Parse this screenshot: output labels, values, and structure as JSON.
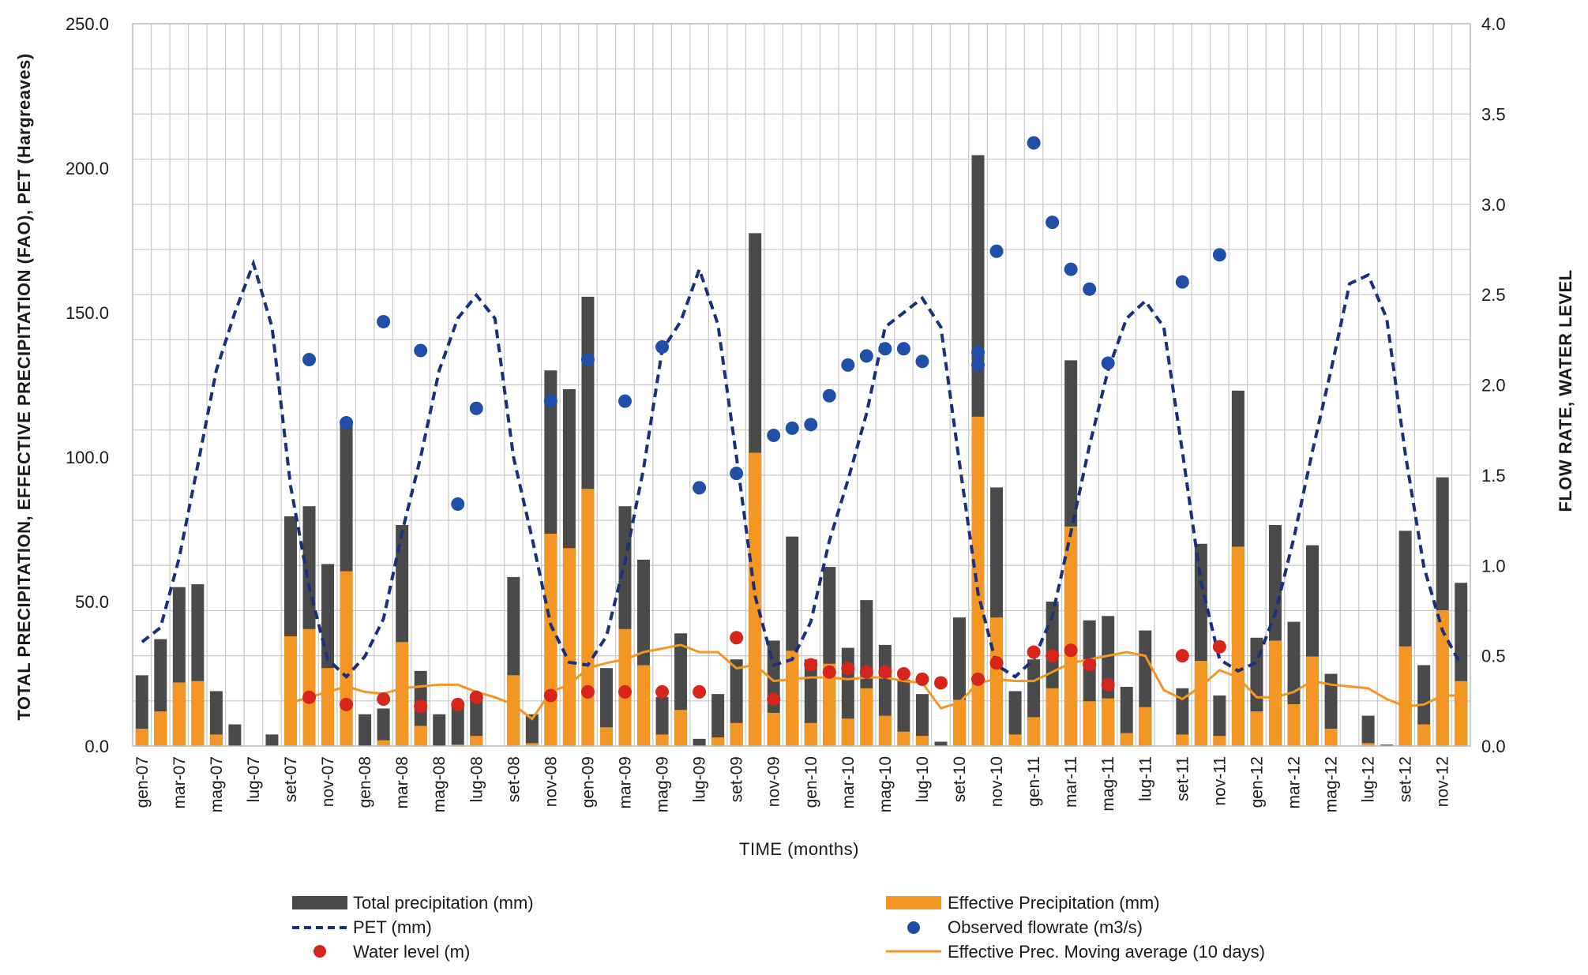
{
  "chart_data": {
    "type": "bar",
    "title": "",
    "xlabel": "TIME (months)",
    "ylabel": "TOTAL PRECIPITATION, EFFECTIVE PRECIPITATION (FAO), PET (Hargreaves)",
    "y2label": "FLOW RATE, WATER LEVEL",
    "ylim": [
      0,
      250
    ],
    "y2lim": [
      0,
      4
    ],
    "yticks": [
      "0.0",
      "50.0",
      "100.0",
      "150.0",
      "200.0",
      "250.0"
    ],
    "y2ticks": [
      "0.0",
      "0.5",
      "1.0",
      "1.5",
      "2.0",
      "2.5",
      "3.0",
      "3.5",
      "4.0"
    ],
    "grid": true,
    "legend_position": "bottom",
    "categories": [
      "gen-07",
      "feb-07",
      "mar-07",
      "apr-07",
      "mag-07",
      "giu-07",
      "lug-07",
      "ago-07",
      "set-07",
      "ott-07",
      "nov-07",
      "dic-07",
      "gen-08",
      "feb-08",
      "mar-08",
      "apr-08",
      "mag-08",
      "giu-08",
      "lug-08",
      "ago-08",
      "set-08",
      "ott-08",
      "nov-08",
      "dic-08",
      "gen-09",
      "feb-09",
      "mar-09",
      "apr-09",
      "mag-09",
      "giu-09",
      "lug-09",
      "ago-09",
      "set-09",
      "ott-09",
      "nov-09",
      "dic-09",
      "gen-10",
      "feb-10",
      "mar-10",
      "apr-10",
      "mag-10",
      "giu-10",
      "lug-10",
      "ago-10",
      "set-10",
      "ott-10",
      "nov-10",
      "dic-10",
      "gen-11",
      "feb-11",
      "mar-11",
      "apr-11",
      "mag-11",
      "giu-11",
      "lug-11",
      "ago-11",
      "set-11",
      "ott-11",
      "nov-11",
      "dic-11",
      "gen-12",
      "feb-12",
      "mar-12",
      "apr-12",
      "mag-12",
      "giu-12",
      "lug-12",
      "ago-12",
      "set-12",
      "ott-12",
      "nov-12",
      "dic-12"
    ],
    "tick_labels": [
      "gen-07",
      "",
      "mar-07",
      "",
      "mag-07",
      "",
      "lug-07",
      "",
      "set-07",
      "",
      "nov-07",
      "",
      "gen-08",
      "",
      "mar-08",
      "",
      "mag-08",
      "",
      "lug-08",
      "",
      "set-08",
      "",
      "nov-08",
      "",
      "gen-09",
      "",
      "mar-09",
      "",
      "mag-09",
      "",
      "lug-09",
      "",
      "set-09",
      "",
      "nov-09",
      "",
      "gen-10",
      "",
      "mar-10",
      "",
      "mag-10",
      "",
      "lug-10",
      "",
      "set-10",
      "",
      "nov-10",
      "",
      "gen-11",
      "",
      "mar-11",
      "",
      "mag-11",
      "",
      "lug-11",
      "",
      "set-11",
      "",
      "nov-11",
      "",
      "gen-12",
      "",
      "mar-12",
      "",
      "mag-12",
      "",
      "lug-12",
      "",
      "set-12",
      "",
      "nov-12",
      ""
    ],
    "series": [
      {
        "name": "Total precipitation (mm)",
        "type": "bar",
        "axis": "left",
        "color": "#4a4a4a",
        "values": [
          24.5,
          37,
          55,
          56,
          19,
          7.5,
          0,
          4,
          79.5,
          83,
          63,
          112,
          11,
          13,
          76.5,
          26,
          11,
          14,
          18,
          0,
          58.5,
          11,
          130,
          123.5,
          155.5,
          27,
          83,
          64.5,
          17,
          39,
          2.5,
          18,
          30,
          177.5,
          36.5,
          72.5,
          30,
          62,
          34,
          50.5,
          35,
          23,
          18,
          1.5,
          44.5,
          204.5,
          89.5,
          19,
          30,
          50,
          133.5,
          43.5,
          45,
          20.5,
          40,
          0,
          20,
          70,
          17.5,
          123,
          37.5,
          76.5,
          43,
          69.5,
          25,
          0,
          10.5,
          0.5,
          74.5,
          28,
          93,
          56.5
        ]
      },
      {
        "name": "Effective Precipitation (mm)",
        "type": "bar",
        "axis": "left",
        "color": "#f39623",
        "values": [
          6,
          12,
          22,
          22.5,
          4,
          0,
          0,
          0,
          38,
          40.5,
          27,
          60.5,
          0,
          2,
          36,
          7,
          0,
          0.5,
          3.5,
          0,
          24.5,
          1,
          73.5,
          68.5,
          89,
          6.5,
          40.5,
          28,
          4,
          12.5,
          0,
          3,
          8,
          101.5,
          11.5,
          33,
          8,
          28.5,
          9.5,
          20,
          10.5,
          5,
          3.5,
          0,
          16,
          114,
          44.5,
          4,
          10,
          20,
          76,
          15.5,
          16.5,
          4.5,
          13.5,
          0,
          4,
          29.5,
          3.5,
          69,
          12,
          36.5,
          14.5,
          31,
          6,
          0,
          1,
          0,
          34.5,
          7.5,
          47,
          22.5
        ]
      },
      {
        "name": "PET (mm)",
        "type": "line",
        "style": "dashed",
        "axis": "left",
        "color": "#1b2f7a",
        "values": [
          36,
          41,
          65,
          97,
          130,
          150,
          167,
          145,
          90,
          55,
          30,
          24,
          31,
          44,
          74,
          100,
          130,
          148,
          156,
          148,
          100,
          72,
          42,
          29,
          28,
          38,
          64,
          96,
          137,
          147,
          165,
          146,
          100,
          52,
          28,
          30,
          43,
          71,
          92,
          115,
          145,
          150,
          155,
          145,
          98,
          53,
          28,
          24,
          30,
          45,
          74,
          104,
          130,
          148,
          154,
          145,
          102,
          57,
          30,
          26,
          29,
          46,
          72,
          102,
          130,
          160,
          163,
          148,
          101,
          62,
          40,
          28
        ]
      },
      {
        "name": "Observed flowrate (m3/s)",
        "type": "scatter",
        "axis": "right",
        "color": "#1f4fa8",
        "points": [
          [
            9,
            2.14
          ],
          [
            11,
            1.79
          ],
          [
            13,
            2.35
          ],
          [
            15,
            2.19
          ],
          [
            17,
            1.34
          ],
          [
            18,
            1.87
          ],
          [
            22,
            1.91
          ],
          [
            24,
            2.14
          ],
          [
            26,
            1.91
          ],
          [
            28,
            2.21
          ],
          [
            30,
            1.43
          ],
          [
            32,
            1.51
          ],
          [
            34,
            1.72
          ],
          [
            35,
            1.76
          ],
          [
            36,
            1.78
          ],
          [
            37,
            1.94
          ],
          [
            38,
            2.11
          ],
          [
            39,
            2.16
          ],
          [
            40,
            2.2
          ],
          [
            41,
            2.2
          ],
          [
            42,
            2.13
          ],
          [
            45,
            2.18
          ],
          [
            45,
            2.11
          ],
          [
            46,
            2.74
          ],
          [
            48,
            3.34
          ],
          [
            49,
            2.9
          ],
          [
            50,
            2.64
          ],
          [
            51,
            2.53
          ],
          [
            52,
            2.12
          ],
          [
            56,
            2.57
          ],
          [
            58,
            2.72
          ]
        ]
      },
      {
        "name": "Water level (m)",
        "type": "scatter",
        "axis": "right",
        "color": "#d7251c",
        "points": [
          [
            9,
            0.27
          ],
          [
            11,
            0.23
          ],
          [
            13,
            0.26
          ],
          [
            15,
            0.22
          ],
          [
            17,
            0.23
          ],
          [
            18,
            0.27
          ],
          [
            22,
            0.28
          ],
          [
            24,
            0.3
          ],
          [
            26,
            0.3
          ],
          [
            28,
            0.3
          ],
          [
            30,
            0.3
          ],
          [
            32,
            0.6
          ],
          [
            34,
            0.26
          ],
          [
            36,
            0.45
          ],
          [
            37,
            0.41
          ],
          [
            38,
            0.43
          ],
          [
            39,
            0.41
          ],
          [
            40,
            0.41
          ],
          [
            41,
            0.4
          ],
          [
            42,
            0.37
          ],
          [
            43,
            0.35
          ],
          [
            45,
            0.37
          ],
          [
            46,
            0.46
          ],
          [
            48,
            0.52
          ],
          [
            49,
            0.5
          ],
          [
            50,
            0.53
          ],
          [
            51,
            0.45
          ],
          [
            52,
            0.34
          ],
          [
            56,
            0.5
          ],
          [
            58,
            0.55
          ]
        ]
      },
      {
        "name": "Effective Prec. Moving average (10 days)",
        "type": "line",
        "axis": "right",
        "color": "#f39623",
        "values": [
          null,
          null,
          null,
          null,
          null,
          null,
          null,
          null,
          0.24,
          0.27,
          0.3,
          0.33,
          0.3,
          0.29,
          0.32,
          0.33,
          0.34,
          0.34,
          0.3,
          0.27,
          0.23,
          0.15,
          0.3,
          0.34,
          0.43,
          0.46,
          0.48,
          0.52,
          0.54,
          0.56,
          0.52,
          0.52,
          0.43,
          0.45,
          0.36,
          0.37,
          0.38,
          0.38,
          0.37,
          0.38,
          0.38,
          0.36,
          0.35,
          0.21,
          0.24,
          0.35,
          0.37,
          0.36,
          0.36,
          0.41,
          0.46,
          0.48,
          0.5,
          0.52,
          0.5,
          0.31,
          0.26,
          0.33,
          0.42,
          0.38,
          0.27,
          0.27,
          0.3,
          0.36,
          0.34,
          0.33,
          0.32,
          0.26,
          0.22,
          0.23,
          0.28,
          0.28
        ]
      }
    ]
  }
}
